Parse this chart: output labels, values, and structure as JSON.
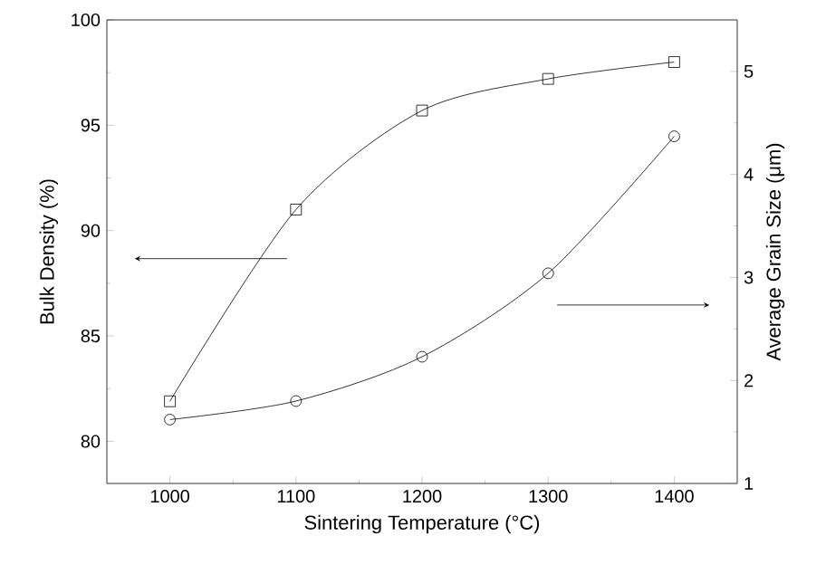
{
  "chart_data": {
    "type": "line",
    "xlabel": "Sintering Temperature (°C)",
    "ylabel": "Bulk Density (%)",
    "y2label": "Average Grain Size (μm)",
    "x": [
      1000,
      1100,
      1200,
      1300,
      1400
    ],
    "xlim": [
      950,
      1450
    ],
    "xticks": [
      1000,
      1100,
      1200,
      1300,
      1400
    ],
    "ylim": [
      78,
      100
    ],
    "yticks": [
      80,
      85,
      90,
      95,
      100
    ],
    "y2lim": [
      1,
      5.5
    ],
    "y2ticks": [
      1,
      2,
      3,
      4,
      5
    ],
    "series": [
      {
        "color": "#000000",
        "marker": "square",
        "values": [
          81.9,
          91.0,
          95.7,
          97.2,
          98.0
        ]
      },
      {
        "color": "#000000",
        "marker": "circle",
        "axis": "y2",
        "values": [
          1.62,
          1.8,
          2.23,
          3.04,
          4.37
        ]
      }
    ]
  }
}
